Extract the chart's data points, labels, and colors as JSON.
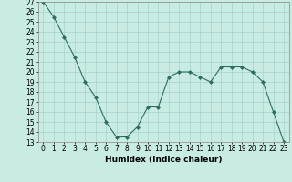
{
  "x": [
    0,
    1,
    2,
    3,
    4,
    5,
    6,
    7,
    8,
    9,
    10,
    11,
    12,
    13,
    14,
    15,
    16,
    17,
    18,
    19,
    20,
    21,
    22,
    23
  ],
  "y": [
    27,
    25.5,
    23.5,
    21.5,
    19,
    17.5,
    15,
    13.5,
    13.5,
    14.5,
    16.5,
    16.5,
    19.5,
    20,
    20,
    19.5,
    19,
    20.5,
    20.5,
    20.5,
    20,
    19,
    16,
    13
  ],
  "xlabel": "Humidex (Indice chaleur)",
  "xlim": [
    -0.5,
    23.5
  ],
  "ylim": [
    13,
    27
  ],
  "yticks": [
    13,
    14,
    15,
    16,
    17,
    18,
    19,
    20,
    21,
    22,
    23,
    24,
    25,
    26,
    27
  ],
  "xticks": [
    0,
    1,
    2,
    3,
    4,
    5,
    6,
    7,
    8,
    9,
    10,
    11,
    12,
    13,
    14,
    15,
    16,
    17,
    18,
    19,
    20,
    21,
    22,
    23
  ],
  "line_color": "#2d6e5e",
  "marker": "D",
  "marker_size": 2,
  "bg_color": "#c8ebe3",
  "grid_color": "#9ecec4",
  "label_fontsize": 6.5,
  "tick_fontsize": 5.5
}
